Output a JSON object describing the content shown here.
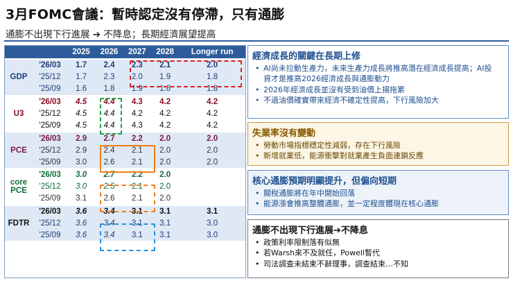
{
  "header": {
    "title": "3月FOMC會議：暫時認定沒有停滯，只有通膨",
    "subtitle": "通膨不出現下行進展 ➔ 不降息；長期經濟展望提高"
  },
  "table": {
    "columns": [
      "2025",
      "2026",
      "2027",
      "2028",
      "Longer run"
    ],
    "groups": [
      {
        "name": "GDP",
        "rows": [
          {
            "date": "'26/03",
            "values": [
              "1.7",
              "2.4",
              "2.3",
              "2.1",
              "2.0"
            ]
          },
          {
            "date": "'25/12",
            "values": [
              "1.7",
              "2.3",
              "2.0",
              "1.9",
              "1.8"
            ]
          },
          {
            "date": "'25/09",
            "values": [
              "1.6",
              "1.8",
              "1.9",
              "1.8",
              "1.8"
            ]
          }
        ]
      },
      {
        "name": "U3",
        "rows": [
          {
            "date": "'26/03",
            "values": [
              "4.5",
              "4.4",
              "4.3",
              "4.2",
              "4.2"
            ]
          },
          {
            "date": "'25/12",
            "values": [
              "4.5",
              "4.4",
              "4.2",
              "4.2",
              "4.2"
            ]
          },
          {
            "date": "'25/09",
            "values": [
              "4.5",
              "4.4",
              "4.3",
              "4.2",
              "4.2"
            ]
          }
        ]
      },
      {
        "name": "PCE",
        "rows": [
          {
            "date": "'26/03",
            "values": [
              "2.9",
              "2.7",
              "2.2",
              "2.0",
              "2.0"
            ]
          },
          {
            "date": "'25/12",
            "values": [
              "2.9",
              "2.4",
              "2.1",
              "2.0",
              "2.0"
            ]
          },
          {
            "date": "'25/09",
            "values": [
              "3.0",
              "2.6",
              "2.1",
              "2.0",
              "2.0"
            ]
          }
        ]
      },
      {
        "name": "core PCE",
        "rows": [
          {
            "date": "'26/03",
            "values": [
              "3.0",
              "2.7",
              "2.2",
              "2.0",
              ""
            ]
          },
          {
            "date": "'25/12",
            "values": [
              "3.0",
              "2.5",
              "2.1",
              "2.0",
              ""
            ]
          },
          {
            "date": "'25/09",
            "values": [
              "3.1",
              "2.6",
              "2.1",
              "2.0",
              ""
            ]
          }
        ]
      },
      {
        "name": "FDTR",
        "rows": [
          {
            "date": "'26/03",
            "values": [
              "3.6",
              "3.4",
              "3.1",
              "3.1",
              "3.1"
            ]
          },
          {
            "date": "'25/12",
            "values": [
              "3.6",
              "3.4",
              "3.1",
              "3.1",
              "3.0"
            ]
          },
          {
            "date": "'25/09",
            "values": [
              "3.6",
              "3.4",
              "3.1",
              "3.1",
              "3.0"
            ]
          }
        ]
      }
    ]
  },
  "panels": {
    "growth": {
      "heading": "經濟成長的關鍵在長期上修",
      "bullets": [
        "AI尚未拉動生產力，未來生產力成長將推高潛在經濟成長提高；AI投資才是推高2026經濟成長與通膨動力",
        "2026年經濟成長並沒有受到油價上揚拖累",
        "不過油價確實帶來經濟不確定性提高，下行風險加大"
      ]
    },
    "unemployment": {
      "heading": "失業率沒有變動",
      "bullets": [
        "勞動市場指標穩定性減弱，存在下行風險",
        "新增就業低，能源衝擊對就業產生負面連鎖反應"
      ]
    },
    "inflation": {
      "heading": "核心通膨預期明顯提升，但偏向短期",
      "bullets": [
        "關稅通膨將在年中開始回落",
        "能源漲會推高整體通膨，並一定程度體現在核心通膨"
      ]
    },
    "rates": {
      "heading": "通膨不出現下行進展➔不降息",
      "bullets": [
        "政策利率限制落有似無",
        "若Warsh來不及就任，Powell暫代",
        "司法調查未結束不辭理事，調查結束…不知"
      ]
    }
  }
}
